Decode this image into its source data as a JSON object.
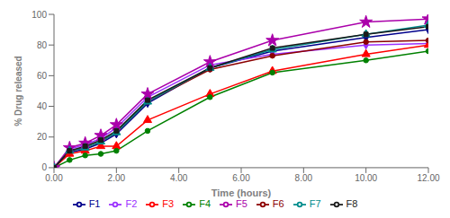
{
  "chart_data": {
    "type": "line",
    "xlabel": "Time (hours)",
    "ylabel": "% Drug released",
    "x": [
      0,
      0.5,
      1.0,
      1.5,
      2.0,
      3.0,
      5.0,
      7.0,
      10.0,
      12.0
    ],
    "xlim": [
      0.0,
      12.0
    ],
    "ylim": [
      0,
      100
    ],
    "xticks": [
      {
        "value": 0,
        "label": "0.00"
      },
      {
        "value": 2,
        "label": "2.00"
      },
      {
        "value": 4,
        "label": "4.00"
      },
      {
        "value": 6,
        "label": "6.00"
      },
      {
        "value": 8,
        "label": "8.00"
      },
      {
        "value": 10,
        "label": "10.00"
      },
      {
        "value": 12,
        "label": "12.00"
      }
    ],
    "yticks": [
      0,
      20,
      40,
      60,
      80,
      100
    ],
    "grid": false,
    "legend": "bottom",
    "series": [
      {
        "name": "F1",
        "color": "#00008B",
        "marker": "diamond",
        "values": [
          0,
          10,
          12,
          16,
          22,
          42,
          65,
          76,
          85,
          90
        ]
      },
      {
        "name": "F2",
        "color": "#9B30FF",
        "marker": "diamond",
        "values": [
          0,
          12,
          15,
          19,
          26,
          46,
          67,
          74,
          80,
          81
        ]
      },
      {
        "name": "F3",
        "color": "#FF0000",
        "marker": "triangle",
        "values": [
          0,
          9,
          11,
          14,
          14,
          31,
          48,
          63,
          74,
          80
        ]
      },
      {
        "name": "F4",
        "color": "#008000",
        "marker": "circle",
        "values": [
          0,
          5,
          8,
          9,
          11,
          24,
          46,
          62,
          70,
          76
        ]
      },
      {
        "name": "F5",
        "color": "#AA00AA",
        "marker": "star",
        "values": [
          0,
          13,
          16,
          21,
          28,
          48,
          69,
          83,
          95,
          97
        ]
      },
      {
        "name": "F6",
        "color": "#8B0000",
        "marker": "circle",
        "values": [
          0,
          11,
          13,
          17,
          23,
          43,
          64,
          73,
          82,
          83
        ]
      },
      {
        "name": "F7",
        "color": "#008B8B",
        "marker": "triangle",
        "values": [
          0,
          11,
          13,
          17,
          23,
          43,
          65,
          77,
          87,
          93
        ]
      },
      {
        "name": "F8",
        "color": "#1a1a1a",
        "marker": "square",
        "values": [
          0,
          11,
          14,
          18,
          24,
          44,
          65,
          78,
          87,
          92
        ]
      }
    ]
  }
}
